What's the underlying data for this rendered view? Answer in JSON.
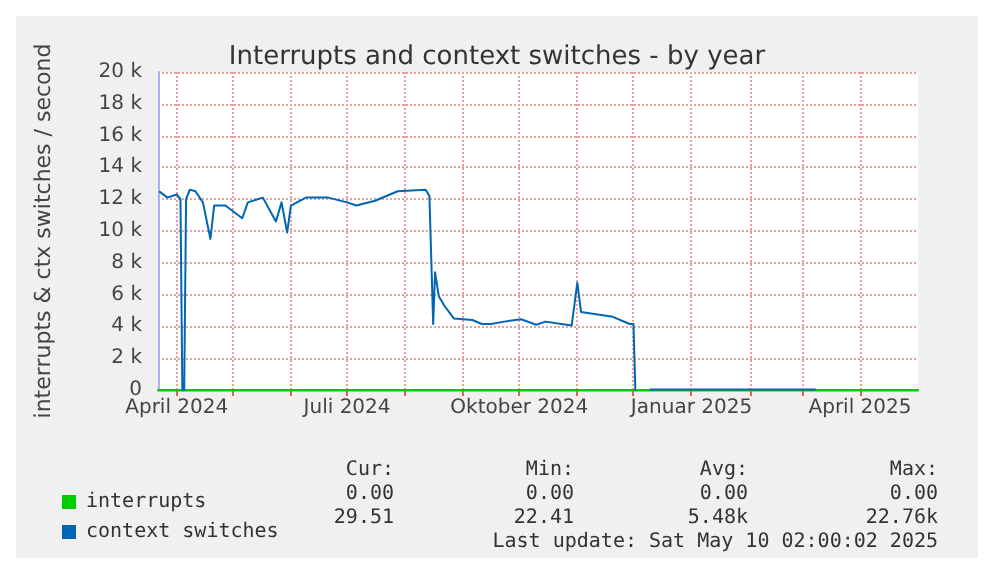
{
  "chart_data": {
    "type": "line",
    "title": "Interrupts and context switches - by year",
    "ylabel": "interrupts & ctx switches / second",
    "series": [
      {
        "name": "interrupts",
        "color": "#00cc00",
        "x": [
          "2024-03-22",
          "2025-05-02"
        ],
        "values": [
          0,
          0
        ]
      },
      {
        "name": "context switches",
        "color": "#0066b3",
        "x": [
          "2024-03-23",
          "2024-03-27",
          "2024-04-01",
          "2024-04-03",
          "2024-04-04",
          "2024-04-05",
          "2024-04-06",
          "2024-04-08",
          "2024-04-11",
          "2024-04-15",
          "2024-04-19",
          "2024-04-21",
          "2024-04-27",
          "2024-05-06",
          "2024-05-09",
          "2024-05-17",
          "2024-05-24",
          "2024-05-27",
          "2024-05-30",
          "2024-06-01",
          "2024-06-09",
          "2024-06-21",
          "2024-07-01",
          "2024-07-06",
          "2024-07-16",
          "2024-07-28",
          "2024-08-12",
          "2024-08-14",
          "2024-08-16",
          "2024-08-17",
          "2024-08-19",
          "2024-08-22",
          "2024-08-27",
          "2024-09-06",
          "2024-09-11",
          "2024-09-16",
          "2024-09-23",
          "2024-10-02",
          "2024-10-10",
          "2024-10-15",
          "2024-10-29",
          "2024-11-01",
          "2024-11-03",
          "2024-11-20",
          "2024-11-29",
          "2024-12-01",
          "2024-12-02",
          "2024-12-06",
          "2024-12-10",
          "2025-03-08"
        ],
        "values": [
          12460,
          12100,
          12300,
          12000,
          0,
          0,
          12000,
          12600,
          12500,
          11800,
          9500,
          11600,
          11600,
          10800,
          11800,
          12100,
          10600,
          11800,
          9900,
          11600,
          12100,
          12100,
          11800,
          11600,
          11900,
          12500,
          12600,
          12200,
          4150,
          7400,
          5900,
          5300,
          4500,
          4400,
          4150,
          4150,
          4300,
          4450,
          4100,
          4300,
          4050,
          6750,
          4900,
          4600,
          4150,
          4150,
          0,
          null,
          30,
          30
        ]
      }
    ],
    "xlim": [
      "2024-03-22",
      "2025-05-02"
    ],
    "xticks": [
      {
        "value": "2024-04-01",
        "label": "April 2024"
      },
      {
        "value": "2024-05-01",
        "label": null
      },
      {
        "value": "2024-06-01",
        "label": null
      },
      {
        "value": "2024-07-01",
        "label": "Juli 2024"
      },
      {
        "value": "2024-08-01",
        "label": null
      },
      {
        "value": "2024-09-01",
        "label": null
      },
      {
        "value": "2024-10-01",
        "label": "Oktober 2024"
      },
      {
        "value": "2024-11-01",
        "label": null
      },
      {
        "value": "2024-12-01",
        "label": null
      },
      {
        "value": "2025-01-01",
        "label": "Januar 2025"
      },
      {
        "value": "2025-02-01",
        "label": null
      },
      {
        "value": "2025-03-01",
        "label": null
      },
      {
        "value": "2025-04-01",
        "label": "April 2025"
      }
    ],
    "ylim": [
      0,
      20000
    ],
    "yticks": [
      0,
      {
        "value": 2000,
        "label": "2 k"
      },
      {
        "value": 4000,
        "label": "4 k"
      },
      {
        "value": 6000,
        "label": "6 k"
      },
      {
        "value": 8000,
        "label": "8 k"
      },
      {
        "value": 10000,
        "label": "10 k"
      },
      {
        "value": 12000,
        "label": "12 k"
      },
      {
        "value": 14000,
        "label": "14 k"
      },
      {
        "value": 16000,
        "label": "16 k"
      },
      {
        "value": 18000,
        "label": "18 k"
      },
      {
        "value": 20000,
        "label": "20 k"
      }
    ],
    "annotations": [
      "Cur:",
      "Min:",
      "Avg:",
      "Max:",
      "0.00",
      "0.00",
      "0.00",
      "0.00",
      "29.51",
      "22.41",
      "5.48k",
      "22.76k",
      "Last update: Sat May 10 02:00:02 2025"
    ],
    "grid": true,
    "legend": "bottom left",
    "marker": "none",
    "line_style": "solid"
  }
}
